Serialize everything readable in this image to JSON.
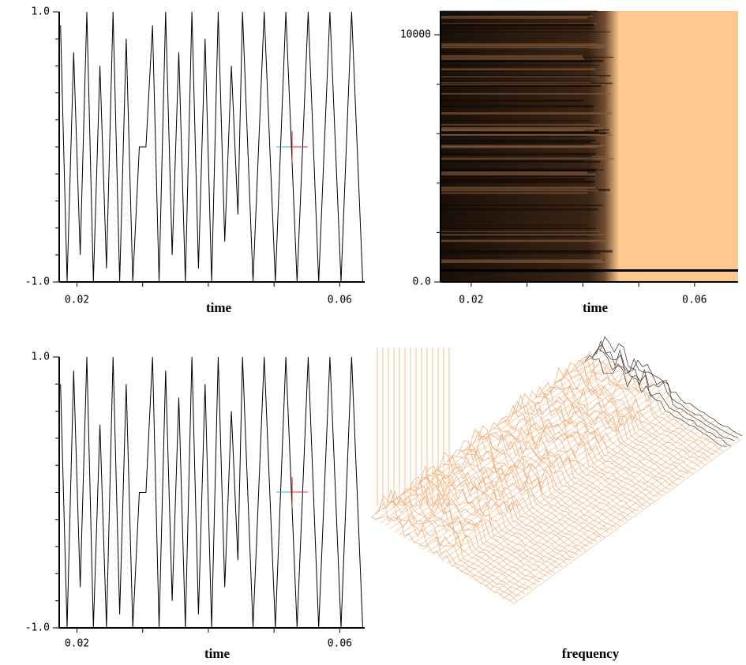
{
  "chart_data": [
    {
      "type": "line",
      "xlabel": "time",
      "color": "#000000",
      "x": [
        0.0175,
        0.0185,
        0.0195,
        0.0205,
        0.0215,
        0.0225,
        0.0235,
        0.0245,
        0.0255,
        0.0265,
        0.0275,
        0.0285,
        0.0295,
        0.0305,
        0.0315,
        0.0325,
        0.0335,
        0.0345,
        0.0355,
        0.0365,
        0.0375,
        0.0385,
        0.0395,
        0.0405,
        0.0415,
        0.0425,
        0.0435,
        0.0445,
        0.0452,
        0.0468,
        0.0485,
        0.0502,
        0.0518,
        0.0535,
        0.0552,
        0.0568,
        0.0585,
        0.0602,
        0.0618,
        0.0635
      ],
      "values": [
        0.9,
        -1,
        0.7,
        -0.8,
        1,
        -1,
        0.6,
        -0.9,
        1,
        -1,
        0.8,
        -1,
        0,
        0,
        0.9,
        -1,
        1,
        -0.8,
        0.7,
        -1,
        1,
        -0.9,
        0.8,
        -1,
        1,
        -0.7,
        0.6,
        -0.5,
        1,
        -1,
        1,
        -1,
        1,
        -1,
        1,
        -1,
        1,
        -1,
        1,
        -1
      ],
      "xlim": [
        0.0173,
        0.0638
      ],
      "ylim": [
        -1,
        1
      ],
      "xticks": [
        0.02,
        0.06
      ],
      "xminor": [
        0.03,
        0.04,
        0.05
      ],
      "yticks": [
        {
          "value": 1,
          "label": "1.0"
        },
        {
          "value": -1,
          "label": "-1.0"
        }
      ],
      "yminor": [
        -0.8,
        -0.6,
        -0.4,
        -0.2,
        0,
        0.2,
        0.4,
        0.6,
        0.8
      ]
    },
    {
      "type": "heatmap",
      "xlabel": "time",
      "xlim": [
        0.0145,
        0.0678
      ],
      "ylim": [
        0,
        10960
      ],
      "xticks": [
        0.02,
        0.06
      ],
      "xminor": [
        0.03,
        0.04,
        0.05
      ],
      "yticks": [
        {
          "value": 10000,
          "label": "10000"
        },
        {
          "value": 0,
          "label": "0.0"
        }
      ],
      "yminor": [
        2000,
        4000,
        6000,
        8000
      ]
    },
    {
      "type": "line",
      "xlabel": "time",
      "color": "#000000",
      "x": [
        0.0175,
        0.0185,
        0.0195,
        0.0205,
        0.0215,
        0.0225,
        0.0235,
        0.0245,
        0.0255,
        0.0265,
        0.0275,
        0.0285,
        0.0295,
        0.0305,
        0.0315,
        0.0325,
        0.0335,
        0.0345,
        0.0355,
        0.0365,
        0.0375,
        0.0385,
        0.0395,
        0.0405,
        0.0415,
        0.0425,
        0.0435,
        0.0445,
        0.0452,
        0.0468,
        0.0485,
        0.0502,
        0.0518,
        0.0535,
        0.0552,
        0.0568,
        0.0585,
        0.0602,
        0.0618,
        0.0635
      ],
      "values": [
        0.8,
        -1,
        0.9,
        -0.7,
        1,
        -1,
        0.5,
        -1,
        1,
        -0.9,
        0.8,
        -1,
        0,
        0,
        1,
        -1,
        0.9,
        -0.8,
        0.7,
        -1,
        1,
        -0.9,
        0.8,
        -1,
        1,
        -0.7,
        0.6,
        -0.5,
        1,
        -1,
        1,
        -1,
        1,
        -1,
        1,
        -1,
        1,
        -1,
        1,
        -1
      ],
      "xlim": [
        0.0173,
        0.0638
      ],
      "ylim": [
        -1,
        1
      ],
      "xticks": [
        0.02,
        0.06
      ],
      "xminor": [
        0.03,
        0.04,
        0.05
      ],
      "yticks": [
        {
          "value": 1,
          "label": "1.0"
        },
        {
          "value": -1,
          "label": "-1.0"
        }
      ],
      "yminor": [
        -0.8,
        -0.6,
        -0.4,
        -0.2,
        0,
        0.2,
        0.4,
        0.6,
        0.8
      ]
    },
    {
      "type": "surface",
      "xlabel": "frequency"
    }
  ]
}
